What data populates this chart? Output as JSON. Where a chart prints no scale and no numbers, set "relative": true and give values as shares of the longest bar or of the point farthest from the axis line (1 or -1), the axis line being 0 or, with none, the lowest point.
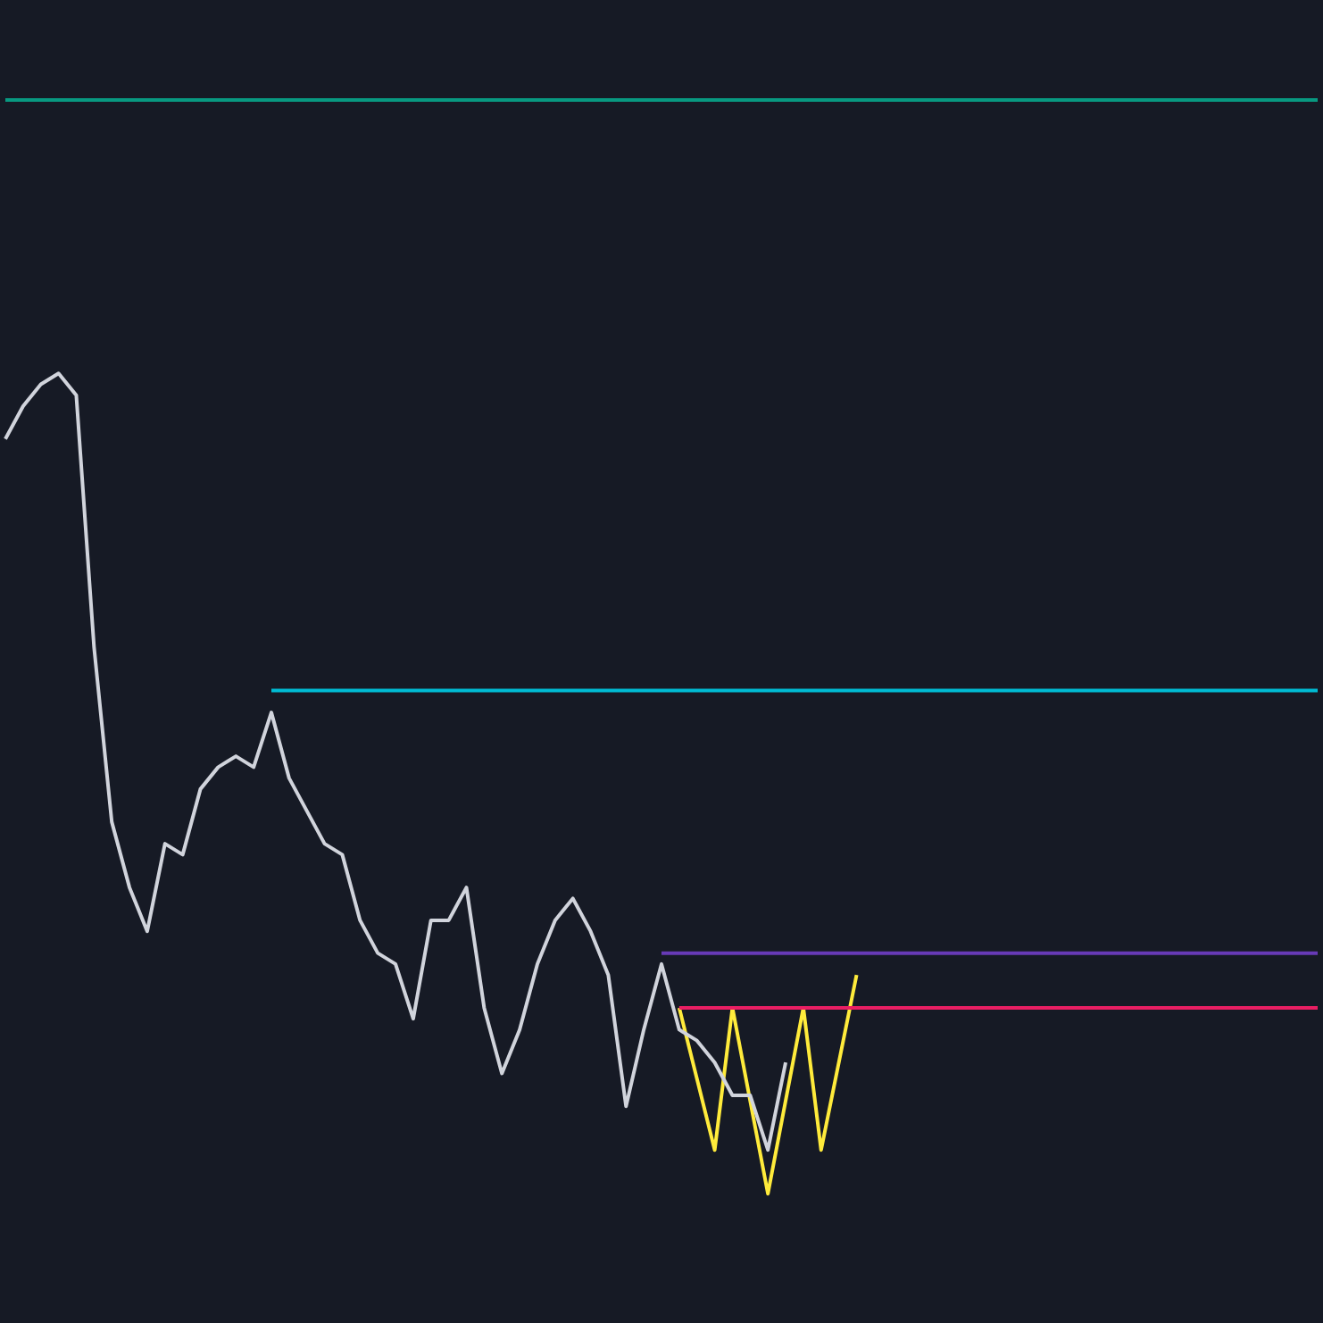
{
  "chart_data": {
    "type": "line",
    "relative": true,
    "legend": false,
    "grid": false,
    "categories": [
      null,
      null,
      null,
      null,
      null,
      null,
      null,
      null,
      null,
      null,
      null,
      null,
      null,
      null,
      null,
      null,
      null,
      null,
      null,
      null,
      null,
      null,
      null,
      null,
      null,
      null,
      null,
      null,
      null,
      null,
      null,
      null,
      null,
      null,
      null,
      null,
      null,
      null,
      null,
      null,
      null,
      null,
      null,
      null,
      null,
      null,
      null,
      null,
      null,
      null,
      null,
      null,
      null,
      null,
      null,
      null,
      null,
      null,
      null,
      null,
      null,
      null,
      null,
      null,
      null,
      null,
      null,
      null,
      null,
      null,
      null,
      null,
      null,
      null,
      null
    ],
    "series": [
      {
        "color": "#089981",
        "values": [
          1,
          1,
          1,
          1,
          1,
          1,
          1,
          1,
          1,
          1,
          1,
          1,
          1,
          1,
          1,
          1,
          1,
          1,
          1,
          1,
          1,
          1,
          1,
          1,
          1,
          1,
          1,
          1,
          1,
          1,
          1,
          1,
          1,
          1,
          1,
          1,
          1,
          1,
          1,
          1,
          1,
          1,
          1,
          1,
          1,
          1,
          1,
          1,
          1,
          1,
          1,
          1,
          1,
          1,
          1,
          1,
          1,
          1,
          1,
          1,
          1,
          1,
          1,
          1,
          1,
          1,
          1,
          1,
          1,
          1,
          1,
          1,
          1,
          1,
          1
        ]
      },
      {
        "color": "#00bcd4",
        "values": [
          null,
          null,
          null,
          null,
          null,
          null,
          null,
          null,
          null,
          null,
          null,
          null,
          null,
          null,
          null,
          0.46,
          0.46,
          0.46,
          0.46,
          0.46,
          0.46,
          0.46,
          0.46,
          0.46,
          0.46,
          0.46,
          0.46,
          0.46,
          0.46,
          0.46,
          0.46,
          0.46,
          0.46,
          0.46,
          0.46,
          0.46,
          0.46,
          0.46,
          0.46,
          0.46,
          0.46,
          0.46,
          0.46,
          0.46,
          0.46,
          0.46,
          0.46,
          0.46,
          0.46,
          0.46,
          0.46,
          0.46,
          0.46,
          0.46,
          0.46,
          0.46,
          0.46,
          0.46,
          0.46,
          0.46,
          0.46,
          0.46,
          0.46,
          0.46,
          0.46,
          0.46,
          0.46,
          0.46,
          0.46,
          0.46,
          0.46,
          0.46,
          0.46,
          0.46,
          0.46
        ]
      },
      {
        "color": "#673ab7",
        "values": [
          null,
          null,
          null,
          null,
          null,
          null,
          null,
          null,
          null,
          null,
          null,
          null,
          null,
          null,
          null,
          null,
          null,
          null,
          null,
          null,
          null,
          null,
          null,
          null,
          null,
          null,
          null,
          null,
          null,
          null,
          null,
          null,
          null,
          null,
          null,
          null,
          null,
          0.22,
          0.22,
          0.22,
          0.22,
          0.22,
          0.22,
          0.22,
          0.22,
          0.22,
          0.22,
          0.22,
          0.22,
          0.22,
          0.22,
          0.22,
          0.22,
          0.22,
          0.22,
          0.22,
          0.22,
          0.22,
          0.22,
          0.22,
          0.22,
          0.22,
          0.22,
          0.22,
          0.22,
          0.22,
          0.22,
          0.22,
          0.22,
          0.22,
          0.22,
          0.22,
          0.22,
          0.22,
          0.22
        ]
      },
      {
        "color": "#e91e63",
        "values": [
          null,
          null,
          null,
          null,
          null,
          null,
          null,
          null,
          null,
          null,
          null,
          null,
          null,
          null,
          null,
          null,
          null,
          null,
          null,
          null,
          null,
          null,
          null,
          null,
          null,
          null,
          null,
          null,
          null,
          null,
          null,
          null,
          null,
          null,
          null,
          null,
          null,
          null,
          0.17,
          0.17,
          0.17,
          0.17,
          0.17,
          0.17,
          0.17,
          0.17,
          0.17,
          0.17,
          0.17,
          0.17,
          0.17,
          0.17,
          0.17,
          0.17,
          0.17,
          0.17,
          0.17,
          0.17,
          0.17,
          0.17,
          0.17,
          0.17,
          0.17,
          0.17,
          0.17,
          0.17,
          0.17,
          0.17,
          0.17,
          0.17,
          0.17,
          0.17,
          0.17,
          0.17,
          0.17
        ]
      },
      {
        "color": "#d1d4dc",
        "values": [
          0.69,
          0.72,
          0.74,
          0.75,
          0.73,
          0.5,
          0.34,
          0.28,
          0.24,
          0.32,
          0.31,
          0.37,
          0.39,
          0.4,
          0.39,
          0.44,
          0.38,
          0.35,
          0.32,
          0.31,
          0.25,
          0.22,
          0.21,
          0.16,
          0.25,
          0.25,
          0.28,
          0.17,
          0.11,
          0.15,
          0.21,
          0.25,
          0.27,
          0.24,
          0.2,
          0.08,
          0.15,
          0.21,
          0.15,
          0.14,
          0.12,
          0.09,
          0.09,
          0.04,
          0.12,
          null,
          null,
          null,
          null,
          null,
          null,
          null,
          null,
          null,
          null,
          null,
          null,
          null,
          null,
          null,
          null,
          null,
          null,
          null,
          null,
          null,
          null,
          null,
          null,
          null,
          null,
          null,
          null,
          null,
          null
        ]
      },
      {
        "color": "#ffeb3b",
        "values": [
          null,
          null,
          null,
          null,
          null,
          null,
          null,
          null,
          null,
          null,
          null,
          null,
          null,
          null,
          null,
          null,
          null,
          null,
          null,
          null,
          null,
          null,
          null,
          null,
          null,
          null,
          null,
          null,
          null,
          null,
          null,
          null,
          null,
          null,
          null,
          null,
          null,
          null,
          0.17,
          null,
          0.04,
          0.17,
          null,
          0,
          null,
          0.17,
          0.04,
          null,
          0.2,
          null,
          null,
          null,
          null,
          null,
          null,
          null,
          null,
          null,
          null,
          null,
          null,
          null,
          null,
          null,
          null,
          null,
          null,
          null,
          null,
          null,
          null,
          null,
          null,
          null,
          null
        ]
      }
    ]
  }
}
